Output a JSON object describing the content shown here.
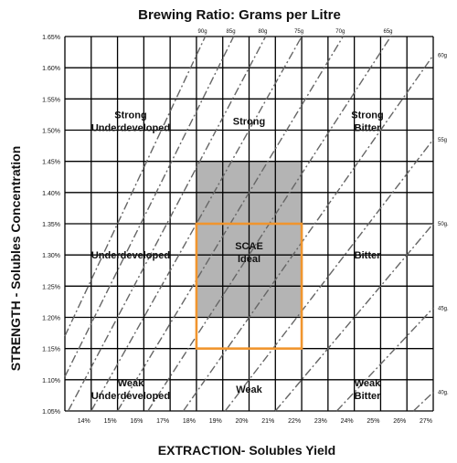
{
  "chart_data": {
    "type": "line",
    "title": "Brewing Ratio: Grams per Litre",
    "xlabel": "EXTRACTION- Solubles Yield",
    "ylabel": "STRENGTH - Solubles Concentration",
    "xlim": [
      13,
      27
    ],
    "ylim": [
      1.05,
      1.65
    ],
    "x_ticks": [
      14,
      15,
      16,
      17,
      18,
      19,
      20,
      21,
      22,
      23,
      24,
      25,
      26,
      27
    ],
    "x_tick_labels": [
      "14%",
      "15%",
      "16%",
      "17%",
      "18%",
      "19%",
      "20%",
      "21%",
      "22%",
      "23%",
      "24%",
      "25%",
      "26%",
      "27%"
    ],
    "y_ticks": [
      1.05,
      1.1,
      1.15,
      1.2,
      1.25,
      1.3,
      1.35,
      1.4,
      1.45,
      1.5,
      1.55,
      1.6,
      1.65
    ],
    "y_tick_labels": [
      "1.05%",
      "1.10%",
      "1.15%",
      "1.20%",
      "1.25%",
      "1.30%",
      "1.35%",
      "1.40%",
      "1.45%",
      "1.50%",
      "1.55%",
      "1.60%",
      "1.65%"
    ],
    "grid": true,
    "ratio_series": [
      {
        "label": "90g",
        "grams": 90
      },
      {
        "label": "85g",
        "grams": 85
      },
      {
        "label": "80g",
        "grams": 80
      },
      {
        "label": "75g",
        "grams": 75
      },
      {
        "label": "70g",
        "grams": 70
      },
      {
        "label": "65g",
        "grams": 65
      },
      {
        "label": "60g",
        "grams": 60
      },
      {
        "label": "55g",
        "grams": 55
      },
      {
        "label": "50g.",
        "grams": 50
      },
      {
        "label": "45g.",
        "grams": 45
      },
      {
        "label": "40g.",
        "grams": 40
      }
    ],
    "regions": [
      {
        "lines": [
          "Strong",
          "Underdeveloped"
        ],
        "x": 15.5,
        "y": 1.515
      },
      {
        "lines": [
          "Strong"
        ],
        "x": 20,
        "y": 1.515
      },
      {
        "lines": [
          "Strong",
          "Bitter"
        ],
        "x": 24.5,
        "y": 1.515
      },
      {
        "lines": [
          "Underdeveloped"
        ],
        "x": 15.5,
        "y": 1.3
      },
      {
        "lines": [
          "SCAE",
          "Ideal"
        ],
        "x": 20,
        "y": 1.305
      },
      {
        "lines": [
          "Bitter"
        ],
        "x": 24.5,
        "y": 1.3
      },
      {
        "lines": [
          "Weak",
          "Underdeveloped"
        ],
        "x": 15.5,
        "y": 1.085
      },
      {
        "lines": [
          "Weak"
        ],
        "x": 20,
        "y": 1.085
      },
      {
        "lines": [
          "Weak",
          "Bitter"
        ],
        "x": 24.5,
        "y": 1.085
      }
    ],
    "strength_band": {
      "x": [
        18,
        22
      ],
      "y": [
        1.2,
        1.45
      ],
      "color": "#b4b4b4"
    },
    "ideal_box": {
      "x": [
        18,
        22
      ],
      "y": [
        1.15,
        1.35
      ],
      "color": "#f0952e"
    }
  }
}
